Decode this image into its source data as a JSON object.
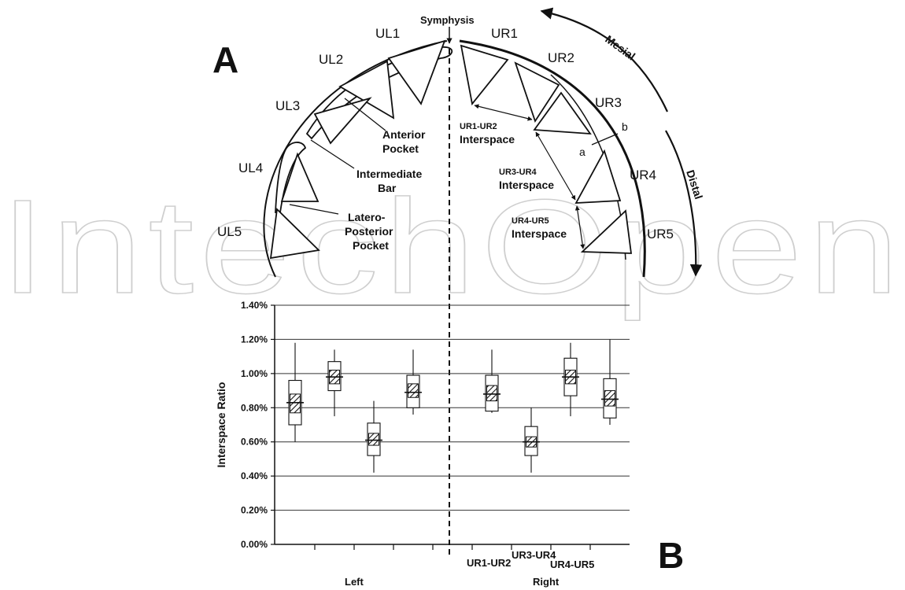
{
  "watermark": "IntechOpen",
  "panel_a": {
    "letter": "A",
    "symphysis": "Symphysis",
    "mesial": "Mesial",
    "distal": "Distal",
    "teeth_left": [
      "UL1",
      "UL2",
      "UL3",
      "UL4",
      "UL5"
    ],
    "teeth_right": [
      "UR1",
      "UR2",
      "UR3",
      "UR4",
      "UR5"
    ],
    "anterior_pocket": [
      "Anterior",
      "Pocket"
    ],
    "intermediate_bar": [
      "Intermediate",
      "Bar"
    ],
    "latero_posterior_pocket": [
      "Latero-",
      "Posterior",
      "Pocket"
    ],
    "interspace_ur1_ur2": [
      "UR1-UR2",
      "Interspace"
    ],
    "interspace_ur3_ur4": [
      "UR3-UR4",
      "Interspace"
    ],
    "interspace_ur4_ur5": [
      "UR4-UR5",
      "Interspace"
    ],
    "point_a": "a",
    "point_b": "b"
  },
  "panel_b": {
    "letter": "B",
    "ylabel": "Interspace Ratio",
    "group_labels": [
      "Left",
      "Right"
    ],
    "x_category_labels": [
      "UR1-UR2",
      "UR3-UR4",
      "UR4-UR5"
    ],
    "chart_data": {
      "type": "box",
      "ylabel": "Interspace Ratio",
      "ylim": [
        0,
        0.014
      ],
      "y_ticks": [
        "0.00%",
        "0.20%",
        "0.40%",
        "0.60%",
        "0.80%",
        "1.00%",
        "1.20%",
        "1.40%"
      ],
      "grid": true,
      "groups": [
        "Left",
        "Right"
      ],
      "boxes": [
        {
          "group": "Left",
          "min": 0.006,
          "q1": 0.007,
          "median": 0.0083,
          "q3": 0.0096,
          "max": 0.0118,
          "ci_low": 0.0077,
          "ci_high": 0.0088
        },
        {
          "group": "Left",
          "min": 0.0075,
          "q1": 0.009,
          "median": 0.0098,
          "q3": 0.0107,
          "max": 0.0114,
          "ci_low": 0.0094,
          "ci_high": 0.0102
        },
        {
          "group": "Left",
          "min": 0.0042,
          "q1": 0.0052,
          "median": 0.0061,
          "q3": 0.0071,
          "max": 0.0084,
          "ci_low": 0.0058,
          "ci_high": 0.0065
        },
        {
          "group": "Left",
          "min": 0.0076,
          "q1": 0.008,
          "median": 0.0089,
          "q3": 0.0099,
          "max": 0.0114,
          "ci_low": 0.0086,
          "ci_high": 0.0094
        },
        {
          "group": "Right",
          "label": "UR1-UR2",
          "min": 0.0077,
          "q1": 0.0078,
          "median": 0.0088,
          "q3": 0.0099,
          "max": 0.0114,
          "ci_low": 0.0084,
          "ci_high": 0.0093
        },
        {
          "group": "Right",
          "label": "UR3-UR4",
          "min": 0.0042,
          "q1": 0.0052,
          "median": 0.006,
          "q3": 0.0069,
          "max": 0.008,
          "ci_low": 0.0057,
          "ci_high": 0.0063
        },
        {
          "group": "Right",
          "label": "UR4-UR5",
          "min": 0.0075,
          "q1": 0.0087,
          "median": 0.0098,
          "q3": 0.0109,
          "max": 0.0118,
          "ci_low": 0.0094,
          "ci_high": 0.0102
        },
        {
          "group": "Right",
          "min": 0.007,
          "q1": 0.0074,
          "median": 0.0085,
          "q3": 0.0097,
          "max": 0.012,
          "ci_low": 0.0081,
          "ci_high": 0.009
        }
      ]
    }
  }
}
